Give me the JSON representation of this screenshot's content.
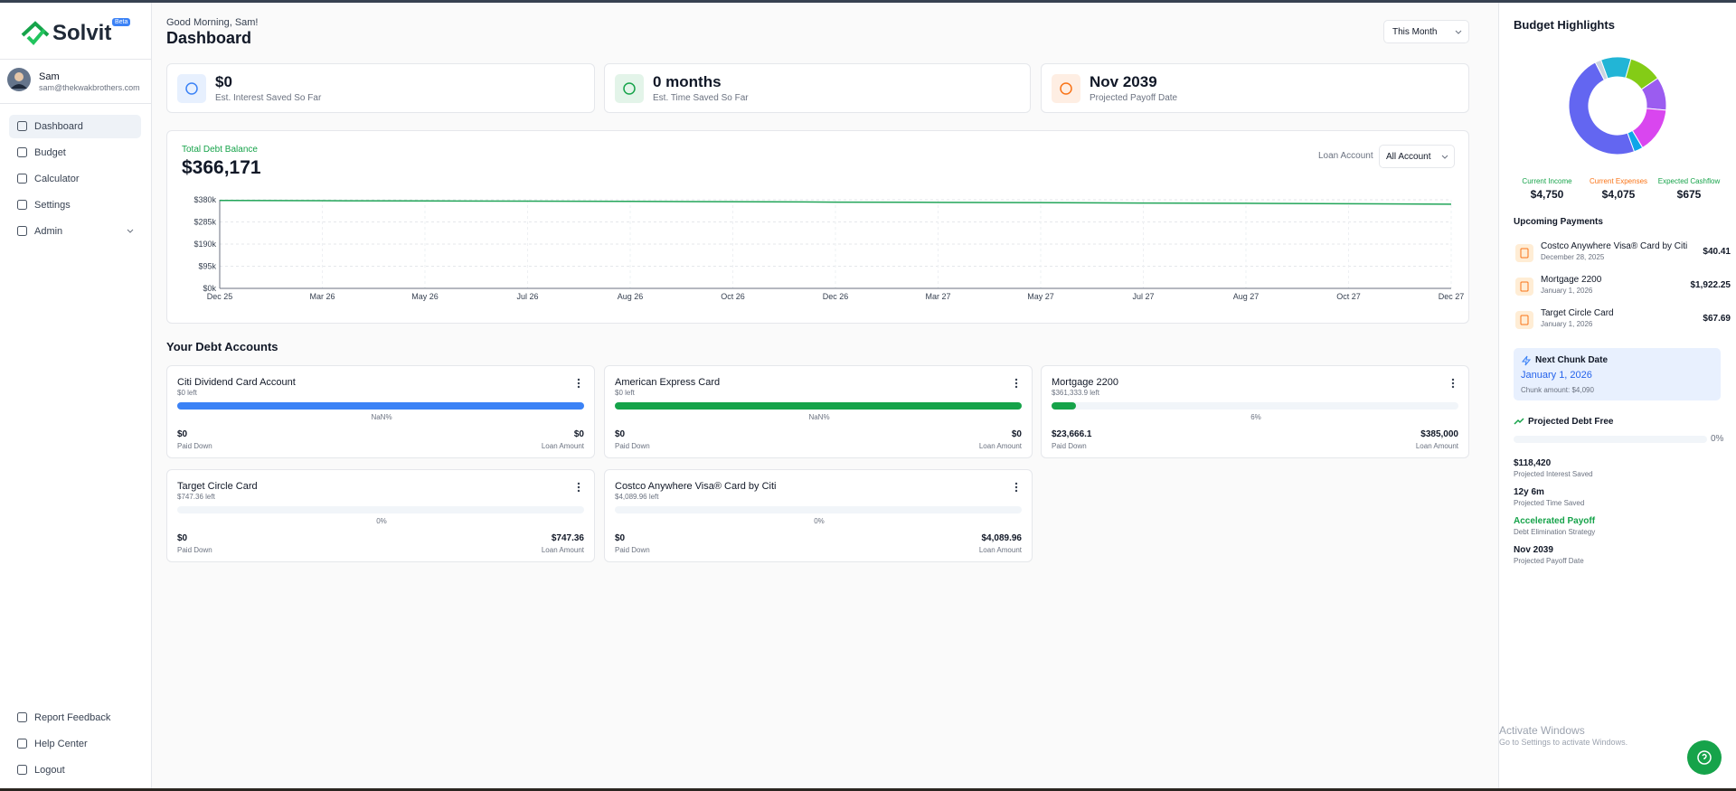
{
  "sidebar": {
    "logo": "Solvit",
    "badge": "Beta",
    "user": {
      "name": "Sam",
      "email": "sam@thekwakbrothers.com"
    },
    "nav": [
      "Dashboard",
      "Budget",
      "Calculator",
      "Settings",
      "Admin"
    ],
    "footer_nav": [
      "Report Feedback",
      "Help Center",
      "Logout"
    ]
  },
  "header": {
    "greeting": "Good Morning, Sam!",
    "title": "Dashboard",
    "period": "This Month"
  },
  "stats": [
    {
      "value": "$0",
      "label": "Est. Interest Saved So Far",
      "color": "#3b82f6"
    },
    {
      "value": "0 months",
      "label": "Est. Time Saved So Far",
      "color": "#16a34a"
    },
    {
      "value": "Nov 2039",
      "label": "Projected Payoff Date",
      "color": "#f97316"
    }
  ],
  "balance_chart": {
    "type": "line",
    "title": "Total Debt Balance",
    "total": "$366,171",
    "filter_label": "Loan Account",
    "filter": "All Account",
    "x": [
      "Dec 25",
      "Mar 26",
      "May 26",
      "Jul 26",
      "Aug 26",
      "Oct 26",
      "Dec 26",
      "Mar 27",
      "May 27",
      "Jul 27",
      "Aug 27",
      "Oct 27",
      "Dec 27"
    ],
    "values": [
      377,
      376,
      375,
      374,
      373,
      372,
      370,
      369,
      368,
      366,
      365,
      363,
      361
    ],
    "color": "#22a559",
    "ylim": [
      0,
      380
    ],
    "yticks": [
      {
        "value": 0,
        "label": "$0k"
      },
      {
        "value": 95,
        "label": "$95k"
      },
      {
        "value": 190,
        "label": "$190k"
      },
      {
        "value": 285,
        "label": "$285k"
      },
      {
        "value": 380,
        "label": "$380k"
      }
    ],
    "grid": true
  },
  "debt_accounts": {
    "title": "Your Debt Accounts",
    "accounts": [
      {
        "name": "Citi Dividend Card Account",
        "left": "$0 left",
        "fill_percent": 100,
        "percent_label": "NaN%",
        "paid_down": "$0",
        "paid_down_label": "Paid Down",
        "loan_amount": "$0",
        "loan_amount_label": "Loan Amount",
        "color": "#3b82f6"
      },
      {
        "name": "American Express Card",
        "left": "$0 left",
        "fill_percent": 100,
        "percent_label": "NaN%",
        "paid_down": "$0",
        "paid_down_label": "Paid Down",
        "loan_amount": "$0",
        "loan_amount_label": "Loan Amount",
        "color": "#16a34a"
      },
      {
        "name": "Mortgage 2200",
        "left": "$361,333.9 left",
        "fill_percent": 6,
        "percent_label": "6%",
        "paid_down": "$23,666.1",
        "paid_down_label": "Paid Down",
        "loan_amount": "$385,000",
        "loan_amount_label": "Loan Amount",
        "color": "#16a34a"
      },
      {
        "name": "Target Circle Card",
        "left": "$747.36 left",
        "fill_percent": 0,
        "percent_label": "0%",
        "paid_down": "$0",
        "paid_down_label": "Paid Down",
        "loan_amount": "$747.36",
        "loan_amount_label": "Loan Amount",
        "color": "#16a34a"
      },
      {
        "name": "Costco Anywhere Visa® Card by Citi",
        "left": "$4,089.96 left",
        "fill_percent": 0,
        "percent_label": "0%",
        "paid_down": "$0",
        "paid_down_label": "Paid Down",
        "loan_amount": "$4,089.96",
        "loan_amount_label": "Loan Amount",
        "color": "#16a34a"
      }
    ]
  },
  "budget": {
    "title": "Budget Highlights",
    "donut": {
      "type": "pie",
      "values": [
        10,
        11,
        11,
        15,
        3,
        48,
        2
      ],
      "colors": [
        "#22b5d6",
        "#84cc16",
        "#9b5cf0",
        "#d946ef",
        "#0ea5e9",
        "#6366f1",
        "#cbd5e1"
      ]
    },
    "summary": [
      {
        "label": "Current Income",
        "value": "$4,750",
        "color": "#16a34a"
      },
      {
        "label": "Current Expenses",
        "value": "$4,075",
        "color": "#f97316"
      },
      {
        "label": "Expected Cashflow",
        "value": "$675",
        "color": "#16a34a"
      }
    ],
    "upcoming": {
      "title": "Upcoming Payments",
      "items": [
        {
          "name": "Costco Anywhere Visa® Card by Citi",
          "date": "December 28, 2025",
          "amount": "$40.41"
        },
        {
          "name": "Mortgage 2200",
          "date": "January 1, 2026",
          "amount": "$1,922.25"
        },
        {
          "name": "Target Circle Card",
          "date": "January 1, 2026",
          "amount": "$67.69"
        }
      ]
    },
    "next_chunk": {
      "title": "Next Chunk Date",
      "date": "January 1, 2026",
      "amount": "Chunk amount: $4,090"
    },
    "projected": {
      "title": "Projected Debt Free",
      "fill_percent": 0,
      "percent_label": "0%",
      "stats": [
        {
          "value": "$118,420",
          "label": "Projected Interest Saved"
        },
        {
          "value": "12y 6m",
          "label": "Projected Time Saved"
        },
        {
          "value": "Accelerated Payoff",
          "label": "Debt Elimination Strategy"
        },
        {
          "value": "Nov 2039",
          "label": "Projected Payoff Date"
        }
      ]
    }
  },
  "watermark": {
    "title": "Activate Windows",
    "subtitle": "Go to Settings to activate Windows."
  }
}
